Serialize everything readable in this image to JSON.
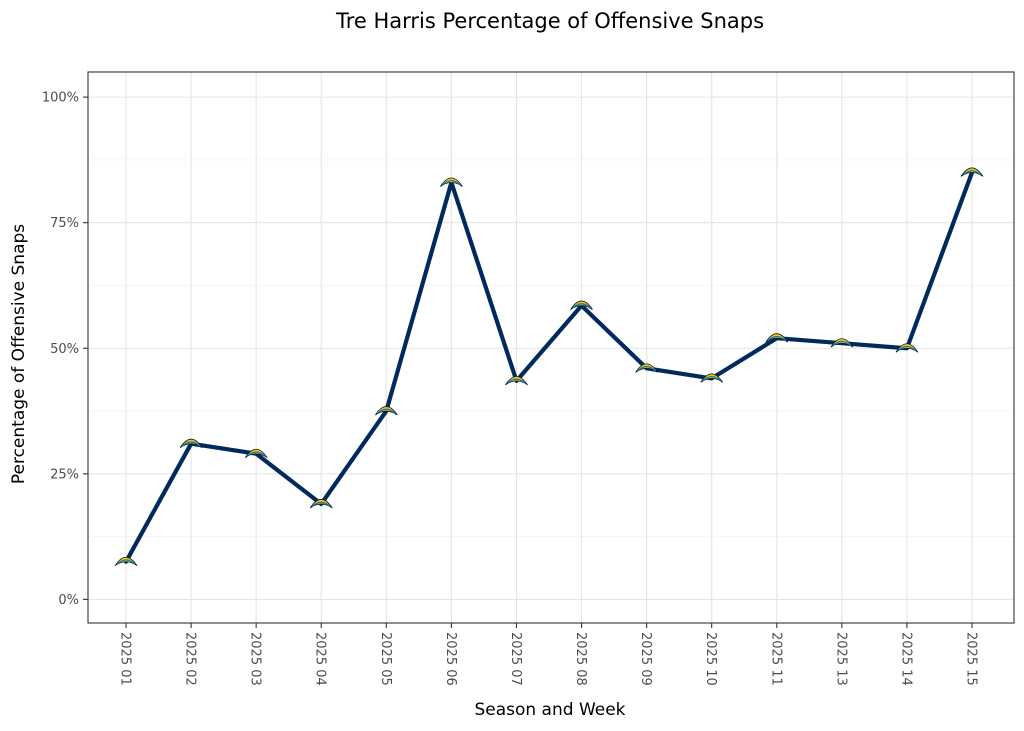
{
  "chart_data": {
    "type": "line",
    "title": "Tre Harris Percentage of Offensive Snaps",
    "xlabel": "Season and Week",
    "ylabel": "Percentage of Offensive Snaps",
    "categories": [
      "2025 01",
      "2025 02",
      "2025 03",
      "2025 04",
      "2025 05",
      "2025 06",
      "2025 07",
      "2025 08",
      "2025 09",
      "2025 10",
      "2025 11",
      "2025 13",
      "2025 14",
      "2025 15"
    ],
    "series": [
      {
        "values": [
          7.5,
          31,
          29,
          19,
          37.5,
          83,
          43.5,
          58.5,
          46,
          44,
          52,
          51,
          50,
          85
        ],
        "color": "#002A5E",
        "marker": "bolt-logo-icon"
      }
    ],
    "yticks": [
      0,
      25,
      50,
      75,
      100
    ],
    "yticklabels": [
      "0%",
      "25%",
      "50%",
      "75%",
      "100%"
    ],
    "ylim": [
      -4.7,
      105
    ],
    "grid": true,
    "legend": "none",
    "colors": {
      "line": "#002A5E",
      "marker_fill": "#FFC20E",
      "marker_accent": "#0080C6"
    }
  }
}
